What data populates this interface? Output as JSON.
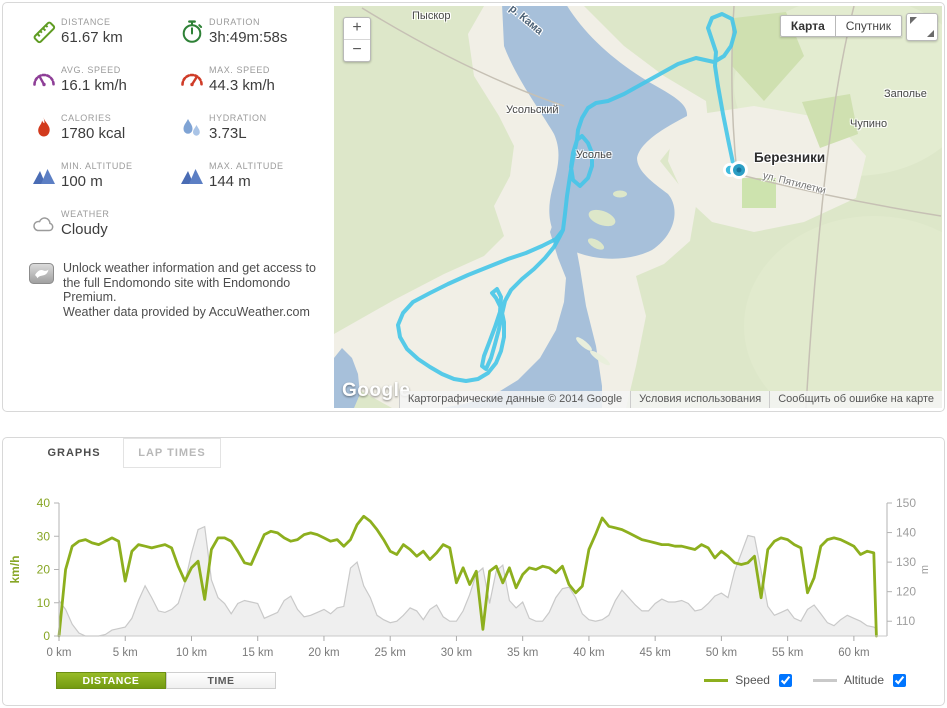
{
  "panel_stats": {
    "items": [
      {
        "label": "DISTANCE",
        "value": "61.67 km",
        "icon": "ruler-icon",
        "color": "#5f9c22"
      },
      {
        "label": "DURATION",
        "value": "3h:49m:58s",
        "icon": "stopwatch-icon",
        "color": "#2e8136"
      },
      {
        "label": "AVG. SPEED",
        "value": "16.1 km/h",
        "icon": "avg-speed-gauge-icon",
        "color": "#8e3f97"
      },
      {
        "label": "MAX. SPEED",
        "value": "44.3 km/h",
        "icon": "max-speed-gauge-icon",
        "color": "#cf3c28"
      },
      {
        "label": "CALORIES",
        "value": "1780 kcal",
        "icon": "flame-icon",
        "color": "#d23a1d"
      },
      {
        "label": "HYDRATION",
        "value": "3.73L",
        "icon": "water-drops-icon",
        "color": "#7fa3d4"
      },
      {
        "label": "MIN. ALTITUDE",
        "value": "100 m",
        "icon": "mountains-icon",
        "color": "#4a6cb4"
      },
      {
        "label": "MAX. ALTITUDE",
        "value": "144 m",
        "icon": "mountains-icon",
        "color": "#4a6cb4"
      },
      {
        "label": "WEATHER",
        "value": "Cloudy",
        "icon": "cloud-icon",
        "color": "#9b9b9b"
      }
    ],
    "premium_note_line1": "Unlock weather information and get access to the full Endomondo site with Endomondo Premium.",
    "premium_note_line2": "Weather data provided by AccuWeather.com"
  },
  "map": {
    "controls": {
      "zoom_in": "+",
      "zoom_out": "−",
      "type_map": "Карта",
      "type_satellite": "Спутник"
    },
    "labels": {
      "pyskor": "Пыскор",
      "kama_river": "р. Кама",
      "usolsky": "Усольский",
      "usolye": "Усолье",
      "berezniki": "Березники",
      "pyatiletki_street": "ул. Пятилетки",
      "zapolye": "Заполье",
      "chupino": "Чупино"
    },
    "attribution": {
      "logo": "Google",
      "copyright": "Картографические данные © 2014 Google",
      "terms": "Условия использования",
      "report": "Сообщить об ошибке на карте"
    },
    "route_color": "#45c5e8"
  },
  "graphs_panel": {
    "tabs": [
      {
        "label": "GRAPHS",
        "active": true
      },
      {
        "label": "LAP TIMES",
        "active": false
      }
    ],
    "x_mode_buttons": [
      {
        "label": "DISTANCE",
        "active": true
      },
      {
        "label": "TIME",
        "active": false
      }
    ],
    "legend": [
      {
        "label": "Speed",
        "checked": true,
        "color": "#8daf1e"
      },
      {
        "label": "Altitude",
        "checked": true,
        "color": "#c9c9c9"
      }
    ]
  },
  "chart_data": {
    "type": "line",
    "title": "",
    "xlabel": "",
    "ylabel_left": "km/h",
    "ylabel_right": "m",
    "ylim_left": [
      0,
      40
    ],
    "ylim_right": [
      105,
      150
    ],
    "y_left_ticks": [
      0,
      10,
      20,
      30,
      40
    ],
    "y_right_ticks": [
      110,
      120,
      130,
      140,
      150
    ],
    "x_tick_km": [
      0,
      5,
      10,
      15,
      20,
      25,
      30,
      35,
      40,
      45,
      50,
      55,
      60
    ],
    "x_tick_labels": [
      "0 km",
      "5 km",
      "10 km",
      "15 km",
      "20 km",
      "25 km",
      "30 km",
      "35 km",
      "40 km",
      "45 km",
      "50 km",
      "55 km",
      "60 km"
    ],
    "grid": false,
    "legend_position": "bottom-right",
    "x_km": [
      0,
      0.5,
      1,
      1.5,
      2,
      2.5,
      3,
      3.5,
      4,
      4.5,
      5,
      5.5,
      6,
      6.5,
      7,
      7.5,
      8,
      8.5,
      9,
      9.5,
      10,
      10.5,
      11,
      11.5,
      12,
      12.5,
      13,
      13.5,
      14,
      14.5,
      15,
      15.5,
      16,
      16.5,
      17,
      17.5,
      18,
      18.5,
      19,
      19.5,
      20,
      20.5,
      21,
      21.5,
      22,
      22.5,
      23,
      23.5,
      24,
      24.5,
      25,
      25.5,
      26,
      26.5,
      27,
      27.5,
      28,
      28.5,
      29,
      29.5,
      30,
      30.5,
      31,
      31.5,
      32,
      32.5,
      33,
      33.5,
      34,
      34.5,
      35,
      35.5,
      36,
      36.5,
      37,
      37.5,
      38,
      38.5,
      39,
      39.5,
      40,
      40.5,
      41,
      41.5,
      42,
      42.5,
      43,
      43.5,
      44,
      44.5,
      45,
      45.5,
      46,
      46.5,
      47,
      47.5,
      48,
      48.5,
      49,
      49.5,
      50,
      50.5,
      51,
      51.5,
      52,
      52.5,
      53,
      53.5,
      54,
      54.5,
      55,
      55.5,
      56,
      56.5,
      57,
      57.5,
      58,
      58.5,
      59,
      59.5,
      60,
      60.5,
      61,
      61.5,
      61.7
    ],
    "series": [
      {
        "name": "Speed",
        "axis": "left",
        "unit": "km/h",
        "color": "#8daf1e",
        "values": [
          0,
          20,
          27,
          28.5,
          29,
          28,
          27.5,
          28.5,
          29.5,
          28.5,
          16.5,
          25.5,
          27.5,
          27,
          26.5,
          27,
          27.5,
          26.5,
          21,
          16.5,
          20.5,
          22.5,
          11,
          26,
          29.5,
          29.5,
          28.5,
          25.5,
          22,
          21.5,
          26,
          30.5,
          31.5,
          31,
          29.5,
          28.5,
          29,
          30.5,
          31,
          30.5,
          29.5,
          28.5,
          29,
          27,
          29,
          33.5,
          36,
          34.5,
          32,
          29,
          25.5,
          24.5,
          27.5,
          26,
          24,
          25.5,
          23,
          25,
          27.5,
          26.5,
          16,
          20.5,
          15.5,
          19.5,
          2,
          19.5,
          21,
          16,
          20.5,
          14.5,
          18.5,
          20.5,
          20,
          21,
          20.5,
          19,
          21,
          15.5,
          13,
          15,
          26,
          30.5,
          35.5,
          33,
          32.5,
          32,
          31,
          30,
          29,
          28.5,
          28,
          27.5,
          27.5,
          27,
          27,
          26.5,
          26,
          27.5,
          26.5,
          23.5,
          25.5,
          24,
          22,
          21.5,
          22,
          24,
          11.5,
          26,
          28.5,
          29.5,
          29,
          27.5,
          26.5,
          13,
          17.5,
          27,
          29,
          29.5,
          29,
          28,
          27,
          24.5,
          25.5,
          25,
          0
        ]
      },
      {
        "name": "Altitude",
        "axis": "right",
        "unit": "m",
        "color": "#c9c9c9",
        "fill": "#efefef",
        "values": [
          117,
          114,
          109,
          106,
          105,
          105,
          105,
          105.5,
          107,
          107.5,
          108,
          111,
          117,
          122,
          118,
          113.5,
          113,
          114,
          116,
          123,
          133,
          141,
          142,
          124,
          118,
          116,
          112.5,
          116,
          117,
          116.5,
          116,
          111,
          112,
          113,
          117,
          118.5,
          114,
          111.5,
          112,
          113,
          114,
          112.5,
          114.5,
          115,
          128,
          130,
          122,
          118,
          112,
          110.5,
          109.5,
          110,
          112,
          114.5,
          113.5,
          110.5,
          114,
          115.5,
          111.5,
          110,
          110,
          113.5,
          119,
          126,
          128,
          116,
          127,
          129,
          117,
          114.5,
          116.5,
          111,
          110,
          110,
          113,
          118,
          121,
          121.5,
          118,
          112.5,
          110.5,
          110,
          110.5,
          112,
          117,
          120.5,
          118,
          115.5,
          113.5,
          113.5,
          116,
          117.5,
          116.5,
          116.5,
          117,
          116,
          113.5,
          114,
          116,
          118.5,
          119.5,
          118,
          127,
          133,
          139,
          138.5,
          127,
          115,
          112,
          113,
          114,
          111,
          110,
          114,
          115.5,
          112.5,
          109.5,
          108.5,
          110.5,
          112,
          111,
          110,
          108.5,
          108,
          107.5
        ]
      }
    ]
  }
}
